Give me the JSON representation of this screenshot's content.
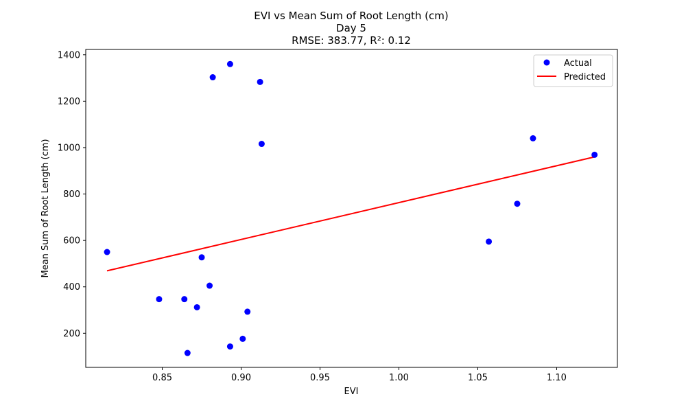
{
  "chart_data": {
    "type": "scatter",
    "title_lines": [
      "EVI vs Mean Sum of Root Length (cm)",
      "Day 5",
      "RMSE: 383.77, R²: 0.12"
    ],
    "xlabel": "EVI",
    "ylabel": "Mean Sum of Root Length (cm)",
    "xlim": [
      0.8015,
      1.1385
    ],
    "ylim": [
      53,
      1423
    ],
    "x_ticks": [
      0.85,
      0.9,
      0.95,
      1.0,
      1.05,
      1.1
    ],
    "x_tick_labels": [
      "0.85",
      "0.90",
      "0.95",
      "1.00",
      "1.05",
      "1.10"
    ],
    "y_ticks": [
      200,
      400,
      600,
      800,
      1000,
      1200,
      1400
    ],
    "y_tick_labels": [
      "200",
      "400",
      "600",
      "800",
      "1000",
      "1200",
      "1400"
    ],
    "grid": false,
    "legend_position": "top-right",
    "series": [
      {
        "name": "Actual",
        "kind": "scatter",
        "color": "#0000ff",
        "points": [
          {
            "x": 0.815,
            "y": 550
          },
          {
            "x": 0.848,
            "y": 347
          },
          {
            "x": 0.864,
            "y": 347
          },
          {
            "x": 0.866,
            "y": 115
          },
          {
            "x": 0.872,
            "y": 312
          },
          {
            "x": 0.875,
            "y": 527
          },
          {
            "x": 0.88,
            "y": 405
          },
          {
            "x": 0.882,
            "y": 1303
          },
          {
            "x": 0.893,
            "y": 1360
          },
          {
            "x": 0.893,
            "y": 143
          },
          {
            "x": 0.901,
            "y": 176
          },
          {
            "x": 0.904,
            "y": 293
          },
          {
            "x": 0.912,
            "y": 1283
          },
          {
            "x": 0.913,
            "y": 1016
          },
          {
            "x": 1.057,
            "y": 595
          },
          {
            "x": 1.075,
            "y": 758
          },
          {
            "x": 1.085,
            "y": 1040
          },
          {
            "x": 1.124,
            "y": 969
          }
        ]
      },
      {
        "name": "Predicted",
        "kind": "line",
        "color": "#ff0000",
        "points": [
          {
            "x": 0.815,
            "y": 469
          },
          {
            "x": 1.124,
            "y": 960
          }
        ]
      }
    ]
  }
}
